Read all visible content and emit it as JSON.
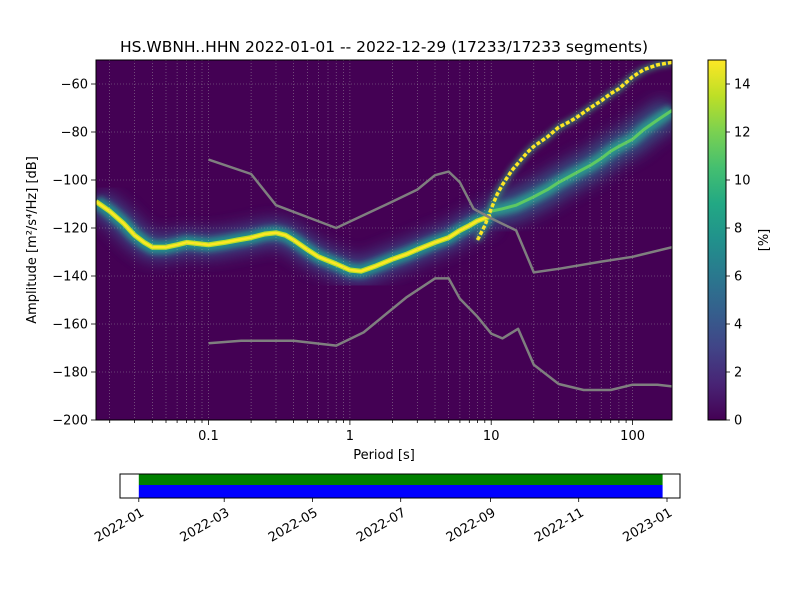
{
  "chart_data": [
    {
      "type": "heatmap",
      "title": "HS.WBNH..HHN   2022-01-01 -- 2022-12-29  (17233/17233 segments)",
      "xlabel": "Period [s]",
      "ylabel": "Amplitude [m²/s⁴/Hz] [dB]",
      "x_scale": "log",
      "xlim": [
        0.016,
        190
      ],
      "ylim": [
        -200,
        -50
      ],
      "x_ticks": [
        0.1,
        1,
        10,
        100
      ],
      "x_tick_labels": [
        "0.1",
        "1",
        "10",
        "100"
      ],
      "y_ticks": [
        -200,
        -180,
        -160,
        -140,
        -120,
        -100,
        -80,
        -60
      ],
      "grid": true,
      "colorbar": {
        "label": "[%]",
        "range": [
          0,
          15
        ],
        "ticks": [
          0,
          2,
          4,
          6,
          8,
          10,
          12,
          14
        ]
      },
      "mode_curve_main": {
        "x": [
          0.016,
          0.02,
          0.025,
          0.03,
          0.035,
          0.04,
          0.05,
          0.06,
          0.07,
          0.1,
          0.13,
          0.16,
          0.2,
          0.25,
          0.3,
          0.35,
          0.4,
          0.5,
          0.6,
          0.8,
          1.0,
          1.2,
          1.5,
          2,
          2.5,
          3,
          4,
          5,
          6,
          7,
          8,
          10
        ],
        "y": [
          -109,
          -113,
          -118,
          -123,
          -126,
          -128,
          -128,
          -127,
          -126,
          -127,
          -126,
          -125,
          -124,
          -122.5,
          -122,
          -123,
          -125,
          -129,
          -132,
          -135,
          -137.5,
          -138,
          -136,
          -133,
          -131,
          -129,
          -126,
          -124,
          -121,
          -119,
          -117,
          -115
        ]
      },
      "mode_curve_secondary": {
        "x": [
          10,
          12,
          15,
          20,
          25,
          30,
          40,
          50,
          60,
          70,
          80,
          100,
          120,
          150,
          190
        ],
        "y": [
          -113,
          -112,
          -110.5,
          -107,
          -104,
          -101,
          -97,
          -94,
          -91,
          -88,
          -86,
          -83,
          -79,
          -75,
          -71
        ]
      },
      "mode_curve_long_period": {
        "x": [
          8,
          9,
          10,
          11,
          12,
          14,
          16,
          18,
          20,
          25,
          30,
          35,
          40,
          50,
          60,
          70,
          80,
          100,
          120,
          150,
          190
        ],
        "y": [
          -125,
          -119,
          -112,
          -106,
          -102,
          -96,
          -92,
          -88.5,
          -86,
          -82,
          -78,
          -76,
          -74,
          -70,
          -67,
          -64,
          -62,
          -57,
          -54,
          -52,
          -51
        ]
      },
      "series": [
        {
          "x": [
            0.1,
            0.2,
            0.3,
            0.8,
            2,
            3,
            4,
            5,
            6,
            7.5,
            10,
            15,
            20,
            30,
            60,
            100,
            190
          ],
          "y": [
            -91.5,
            -97.5,
            -110.5,
            -120,
            -109,
            -104,
            -98,
            -96.5,
            -101,
            -112,
            -116,
            -121,
            -138.5,
            -137,
            -134,
            -132,
            -128
          ]
        },
        {
          "x": [
            0.1,
            0.17,
            0.4,
            0.8,
            1.25,
            2.5,
            4,
            5,
            6,
            8,
            10,
            12,
            15.5,
            20,
            30,
            45,
            70,
            100,
            150,
            190
          ],
          "y": [
            -168,
            -167,
            -167,
            -169,
            -163.5,
            -149,
            -141,
            -141,
            -149.5,
            -157,
            -164,
            -166,
            -162,
            -177,
            -185,
            -187.5,
            -187.5,
            -185.3,
            -185.3,
            -186
          ]
        }
      ]
    },
    {
      "type": "bar",
      "title": "",
      "x_tick_labels": [
        "2022-01",
        "2022-03",
        "2022-05",
        "2022-07",
        "2022-09",
        "2022-11",
        "2023-01"
      ],
      "xlim": [
        "2021-12-19",
        "2023-01-10"
      ],
      "bars": [
        {
          "start": "2022-01-01",
          "end": "2022-12-29",
          "color": "#008000"
        },
        {
          "start": "2022-01-01",
          "end": "2022-12-29",
          "color": "#0000ff"
        }
      ]
    }
  ]
}
